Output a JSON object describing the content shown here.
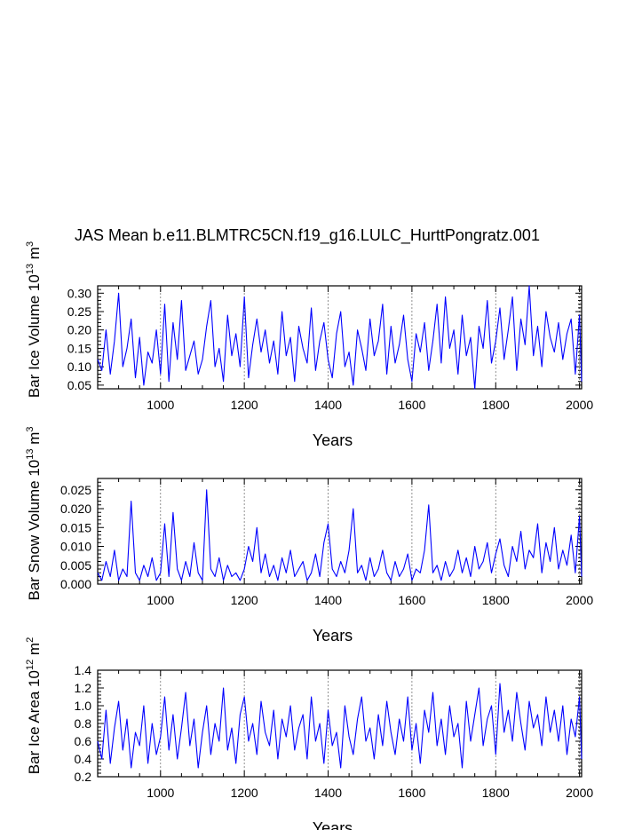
{
  "title": "JAS Mean b.e11.BLMTRC5CN.f19_g16.LULC_HurttPongratz.001",
  "line_color": "#0000ff",
  "chart_data": [
    {
      "type": "line",
      "name": "ice-volume",
      "xlabel": "Years",
      "ylabel_main": "Bar Ice Volume 10",
      "ylabel_exp": "13",
      "ylabel_unit": " m",
      "ylabel_unit_exp": "3",
      "xlim": [
        850,
        2005
      ],
      "ylim": [
        0.04,
        0.32
      ],
      "xticks": [
        1000,
        1200,
        1400,
        1600,
        1800,
        2000
      ],
      "xtick_labels": [
        "1000",
        "1200",
        "1400",
        "1600",
        "1800",
        "2000"
      ],
      "yticks": [
        0.05,
        0.1,
        0.15,
        0.2,
        0.25,
        0.3
      ],
      "ytick_labels": [
        "0.05",
        "0.10",
        "0.15",
        "0.20",
        "0.25",
        "0.30"
      ],
      "grid": "dashed vertical at x ticks",
      "series": [
        {
          "name": "Bar Ice Volume",
          "x": [
            850,
            860,
            870,
            880,
            890,
            900,
            910,
            920,
            930,
            940,
            950,
            960,
            970,
            980,
            990,
            1000,
            1010,
            1020,
            1030,
            1040,
            1050,
            1060,
            1070,
            1080,
            1090,
            1100,
            1110,
            1120,
            1130,
            1140,
            1150,
            1160,
            1170,
            1180,
            1190,
            1200,
            1210,
            1220,
            1230,
            1240,
            1250,
            1260,
            1270,
            1280,
            1290,
            1300,
            1310,
            1320,
            1330,
            1340,
            1350,
            1360,
            1370,
            1380,
            1390,
            1400,
            1410,
            1420,
            1430,
            1440,
            1450,
            1460,
            1470,
            1480,
            1490,
            1500,
            1510,
            1520,
            1530,
            1540,
            1550,
            1560,
            1570,
            1580,
            1590,
            1600,
            1610,
            1620,
            1630,
            1640,
            1650,
            1660,
            1670,
            1680,
            1690,
            1700,
            1710,
            1720,
            1730,
            1740,
            1750,
            1760,
            1770,
            1780,
            1790,
            1800,
            1810,
            1820,
            1830,
            1840,
            1850,
            1860,
            1870,
            1880,
            1890,
            1900,
            1910,
            1920,
            1930,
            1940,
            1950,
            1960,
            1970,
            1980,
            1990,
            2000,
            2005
          ],
          "values": [
            0.12,
            0.09,
            0.2,
            0.08,
            0.17,
            0.3,
            0.1,
            0.15,
            0.23,
            0.07,
            0.18,
            0.05,
            0.14,
            0.11,
            0.2,
            0.08,
            0.27,
            0.06,
            0.22,
            0.12,
            0.28,
            0.09,
            0.13,
            0.17,
            0.08,
            0.12,
            0.21,
            0.28,
            0.1,
            0.15,
            0.06,
            0.24,
            0.13,
            0.19,
            0.1,
            0.29,
            0.07,
            0.16,
            0.23,
            0.14,
            0.2,
            0.11,
            0.17,
            0.08,
            0.25,
            0.13,
            0.18,
            0.06,
            0.21,
            0.15,
            0.11,
            0.26,
            0.09,
            0.17,
            0.22,
            0.12,
            0.07,
            0.19,
            0.25,
            0.1,
            0.14,
            0.05,
            0.2,
            0.15,
            0.09,
            0.23,
            0.13,
            0.17,
            0.27,
            0.08,
            0.21,
            0.11,
            0.16,
            0.24,
            0.12,
            0.06,
            0.19,
            0.14,
            0.22,
            0.09,
            0.17,
            0.27,
            0.11,
            0.29,
            0.15,
            0.2,
            0.08,
            0.24,
            0.13,
            0.18,
            0.04,
            0.21,
            0.15,
            0.28,
            0.11,
            0.17,
            0.26,
            0.12,
            0.2,
            0.29,
            0.09,
            0.23,
            0.16,
            0.32,
            0.13,
            0.21,
            0.1,
            0.25,
            0.18,
            0.14,
            0.22,
            0.12,
            0.19,
            0.23,
            0.08,
            0.24,
            0.06
          ]
        }
      ]
    },
    {
      "type": "line",
      "name": "snow-volume",
      "xlabel": "Years",
      "ylabel_main": "Bar Snow Volume 10",
      "ylabel_exp": "13",
      "ylabel_unit": " m",
      "ylabel_unit_exp": "3",
      "xlim": [
        850,
        2005
      ],
      "ylim": [
        0.0,
        0.028
      ],
      "xticks": [
        1000,
        1200,
        1400,
        1600,
        1800,
        2000
      ],
      "xtick_labels": [
        "1000",
        "1200",
        "1400",
        "1600",
        "1800",
        "2000"
      ],
      "yticks": [
        0.0,
        0.005,
        0.01,
        0.015,
        0.02,
        0.025
      ],
      "ytick_labels": [
        "0.000",
        "0.005",
        "0.010",
        "0.015",
        "0.020",
        "0.025"
      ],
      "grid": "dashed vertical at x ticks",
      "series": [
        {
          "name": "Bar Snow Volume",
          "x": [
            850,
            860,
            870,
            880,
            890,
            900,
            910,
            920,
            930,
            940,
            950,
            960,
            970,
            980,
            990,
            1000,
            1010,
            1020,
            1030,
            1040,
            1050,
            1060,
            1070,
            1080,
            1090,
            1100,
            1110,
            1120,
            1130,
            1140,
            1150,
            1160,
            1170,
            1180,
            1190,
            1200,
            1210,
            1220,
            1230,
            1240,
            1250,
            1260,
            1270,
            1280,
            1290,
            1300,
            1310,
            1320,
            1330,
            1340,
            1350,
            1360,
            1370,
            1380,
            1390,
            1400,
            1410,
            1420,
            1430,
            1440,
            1450,
            1460,
            1470,
            1480,
            1490,
            1500,
            1510,
            1520,
            1530,
            1540,
            1550,
            1560,
            1570,
            1580,
            1590,
            1600,
            1610,
            1620,
            1630,
            1640,
            1650,
            1660,
            1670,
            1680,
            1690,
            1700,
            1710,
            1720,
            1730,
            1740,
            1750,
            1760,
            1770,
            1780,
            1790,
            1800,
            1810,
            1820,
            1830,
            1840,
            1850,
            1860,
            1870,
            1880,
            1890,
            1900,
            1910,
            1920,
            1930,
            1940,
            1950,
            1960,
            1970,
            1980,
            1990,
            2000,
            2005
          ],
          "values": [
            0.003,
            0.001,
            0.006,
            0.002,
            0.009,
            0.001,
            0.004,
            0.002,
            0.022,
            0.003,
            0.001,
            0.005,
            0.002,
            0.007,
            0.001,
            0.003,
            0.016,
            0.002,
            0.019,
            0.004,
            0.001,
            0.006,
            0.002,
            0.011,
            0.003,
            0.001,
            0.025,
            0.004,
            0.002,
            0.007,
            0.001,
            0.005,
            0.002,
            0.003,
            0.001,
            0.004,
            0.01,
            0.006,
            0.015,
            0.003,
            0.008,
            0.002,
            0.005,
            0.001,
            0.007,
            0.003,
            0.009,
            0.002,
            0.004,
            0.006,
            0.001,
            0.003,
            0.008,
            0.002,
            0.011,
            0.016,
            0.004,
            0.002,
            0.006,
            0.003,
            0.009,
            0.02,
            0.003,
            0.005,
            0.001,
            0.007,
            0.002,
            0.004,
            0.009,
            0.003,
            0.001,
            0.006,
            0.002,
            0.004,
            0.008,
            0.001,
            0.004,
            0.003,
            0.009,
            0.021,
            0.003,
            0.005,
            0.001,
            0.006,
            0.002,
            0.004,
            0.009,
            0.003,
            0.007,
            0.002,
            0.01,
            0.004,
            0.006,
            0.011,
            0.003,
            0.008,
            0.012,
            0.005,
            0.002,
            0.01,
            0.006,
            0.014,
            0.004,
            0.009,
            0.007,
            0.016,
            0.003,
            0.011,
            0.006,
            0.015,
            0.004,
            0.009,
            0.005,
            0.013,
            0.003,
            0.018,
            0.002
          ]
        }
      ]
    },
    {
      "type": "line",
      "name": "ice-area",
      "xlabel": "Years",
      "ylabel_main": "Bar Ice Area 10",
      "ylabel_exp": "12",
      "ylabel_unit": " m",
      "ylabel_unit_exp": "2",
      "xlim": [
        850,
        2005
      ],
      "ylim": [
        0.2,
        1.4
      ],
      "xticks": [
        1000,
        1200,
        1400,
        1600,
        1800,
        2000
      ],
      "xtick_labels": [
        "1000",
        "1200",
        "1400",
        "1600",
        "1800",
        "2000"
      ],
      "yticks": [
        0.2,
        0.4,
        0.6,
        0.8,
        1.0,
        1.2,
        1.4
      ],
      "ytick_labels": [
        "0.2",
        "0.4",
        "0.6",
        "0.8",
        "1.0",
        "1.2",
        "1.4"
      ],
      "grid": "dashed vertical at x ticks",
      "series": [
        {
          "name": "Bar Ice Area",
          "x": [
            850,
            860,
            870,
            880,
            890,
            900,
            910,
            920,
            930,
            940,
            950,
            960,
            970,
            980,
            990,
            1000,
            1010,
            1020,
            1030,
            1040,
            1050,
            1060,
            1070,
            1080,
            1090,
            1100,
            1110,
            1120,
            1130,
            1140,
            1150,
            1160,
            1170,
            1180,
            1190,
            1200,
            1210,
            1220,
            1230,
            1240,
            1250,
            1260,
            1270,
            1280,
            1290,
            1300,
            1310,
            1320,
            1330,
            1340,
            1350,
            1360,
            1370,
            1380,
            1390,
            1400,
            1410,
            1420,
            1430,
            1440,
            1450,
            1460,
            1470,
            1480,
            1490,
            1500,
            1510,
            1520,
            1530,
            1540,
            1550,
            1560,
            1570,
            1580,
            1590,
            1600,
            1610,
            1620,
            1630,
            1640,
            1650,
            1660,
            1670,
            1680,
            1690,
            1700,
            1710,
            1720,
            1730,
            1740,
            1750,
            1760,
            1770,
            1780,
            1790,
            1800,
            1810,
            1820,
            1830,
            1840,
            1850,
            1860,
            1870,
            1880,
            1890,
            1900,
            1910,
            1920,
            1930,
            1940,
            1950,
            1960,
            1970,
            1980,
            1990,
            2000,
            2005
          ],
          "values": [
            0.6,
            0.4,
            0.95,
            0.35,
            0.75,
            1.05,
            0.5,
            0.85,
            0.3,
            0.7,
            0.55,
            1.0,
            0.35,
            0.8,
            0.45,
            0.65,
            1.1,
            0.5,
            0.9,
            0.4,
            0.75,
            1.15,
            0.55,
            0.85,
            0.3,
            0.7,
            1.0,
            0.45,
            0.8,
            0.6,
            1.2,
            0.5,
            0.75,
            0.35,
            0.9,
            1.1,
            0.6,
            0.8,
            0.45,
            1.05,
            0.7,
            0.55,
            0.95,
            0.4,
            0.85,
            0.65,
            1.0,
            0.5,
            0.75,
            0.9,
            0.4,
            1.1,
            0.6,
            0.8,
            0.35,
            0.95,
            0.55,
            0.7,
            0.3,
            1.0,
            0.65,
            0.45,
            0.85,
            1.1,
            0.6,
            0.75,
            0.4,
            0.9,
            0.55,
            1.05,
            0.7,
            0.45,
            0.85,
            0.6,
            1.1,
            0.5,
            0.8,
            0.35,
            0.95,
            0.7,
            1.15,
            0.55,
            0.85,
            0.45,
            1.0,
            0.65,
            0.8,
            0.3,
            1.05,
            0.6,
            0.9,
            1.2,
            0.55,
            0.85,
            1.0,
            0.45,
            1.25,
            0.7,
            0.95,
            0.6,
            1.15,
            0.8,
            0.5,
            1.05,
            0.75,
            0.9,
            0.55,
            1.1,
            0.7,
            0.95,
            0.6,
            1.0,
            0.45,
            0.85,
            0.65,
            1.1,
            0.4
          ]
        }
      ]
    }
  ]
}
